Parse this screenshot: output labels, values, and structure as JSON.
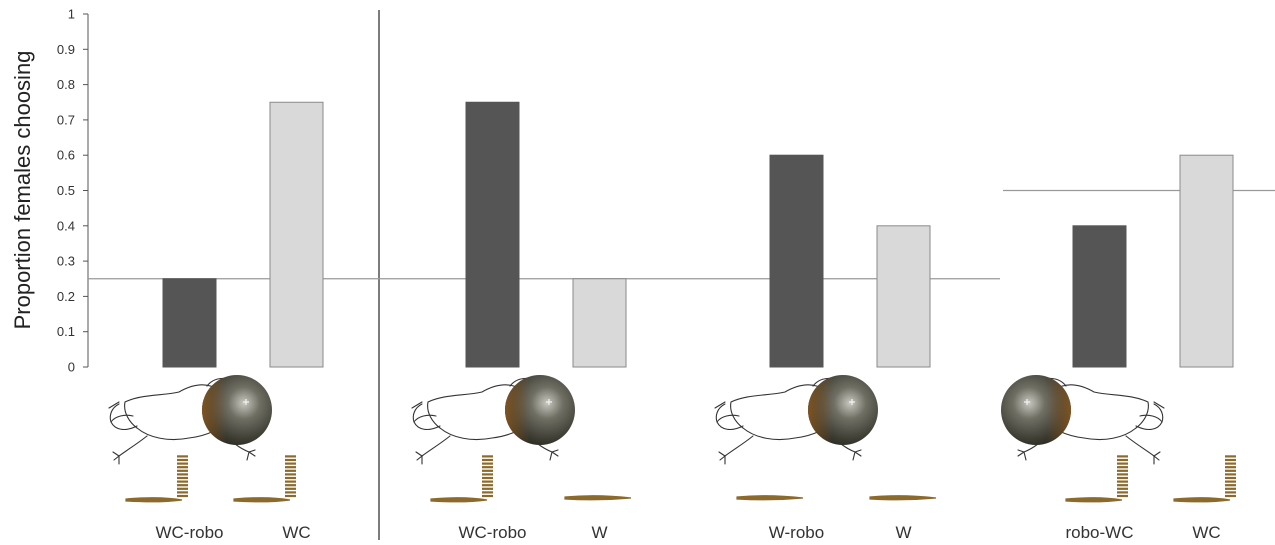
{
  "chart_data": {
    "type": "bar",
    "title": "",
    "ylabel": "Proportion females choosing",
    "xlabel": "",
    "ylim": [
      0,
      1
    ],
    "yticks": [
      "0",
      "0.1",
      "0.2",
      "0.3",
      "0.4",
      "0.5",
      "0.6",
      "0.7",
      "0.8",
      "0.9",
      "1"
    ],
    "grid": false,
    "legend": "none",
    "colors": {
      "dark": "#555555",
      "light": "#d9d9d9",
      "light_stroke": "#8a8a8a",
      "axis": "#555555",
      "ref": "#9a9a9a"
    },
    "groups": [
      {
        "reference": 0.25,
        "bars": [
          {
            "label": "WC-robo",
            "value": 0.25,
            "shade": "dark"
          },
          {
            "label": "WC",
            "value": 0.75,
            "shade": "light"
          }
        ]
      },
      {
        "reference": 0.25,
        "bars": [
          {
            "label": "WC-robo",
            "value": 0.75,
            "shade": "dark"
          },
          {
            "label": "W",
            "value": 0.25,
            "shade": "light"
          }
        ]
      },
      {
        "reference": 0.25,
        "bars": [
          {
            "label": "W-robo",
            "value": 0.6,
            "shade": "dark"
          },
          {
            "label": "W",
            "value": 0.4,
            "shade": "light"
          }
        ]
      },
      {
        "reference": 0.5,
        "bars": [
          {
            "label": "robo-WC",
            "value": 0.4,
            "shade": "dark"
          },
          {
            "label": "WC",
            "value": 0.6,
            "shade": "light"
          }
        ]
      }
    ],
    "illustrations": [
      {
        "icon": "frog-calling-icon",
        "facing": "right"
      },
      {
        "icon": "frog-calling-icon",
        "facing": "right"
      },
      {
        "icon": "frog-calling-icon",
        "facing": "right"
      },
      {
        "icon": "frog-calling-icon",
        "facing": "left"
      }
    ],
    "sound_icons": [
      {
        "left": "whine-chuck-icon",
        "right": "whine-chuck-icon"
      },
      {
        "left": "whine-chuck-icon",
        "right": "whine-icon"
      },
      {
        "left": "whine-icon",
        "right": "whine-icon"
      },
      {
        "left": "whine-chuck-icon",
        "right": "whine-chuck-icon"
      }
    ]
  }
}
